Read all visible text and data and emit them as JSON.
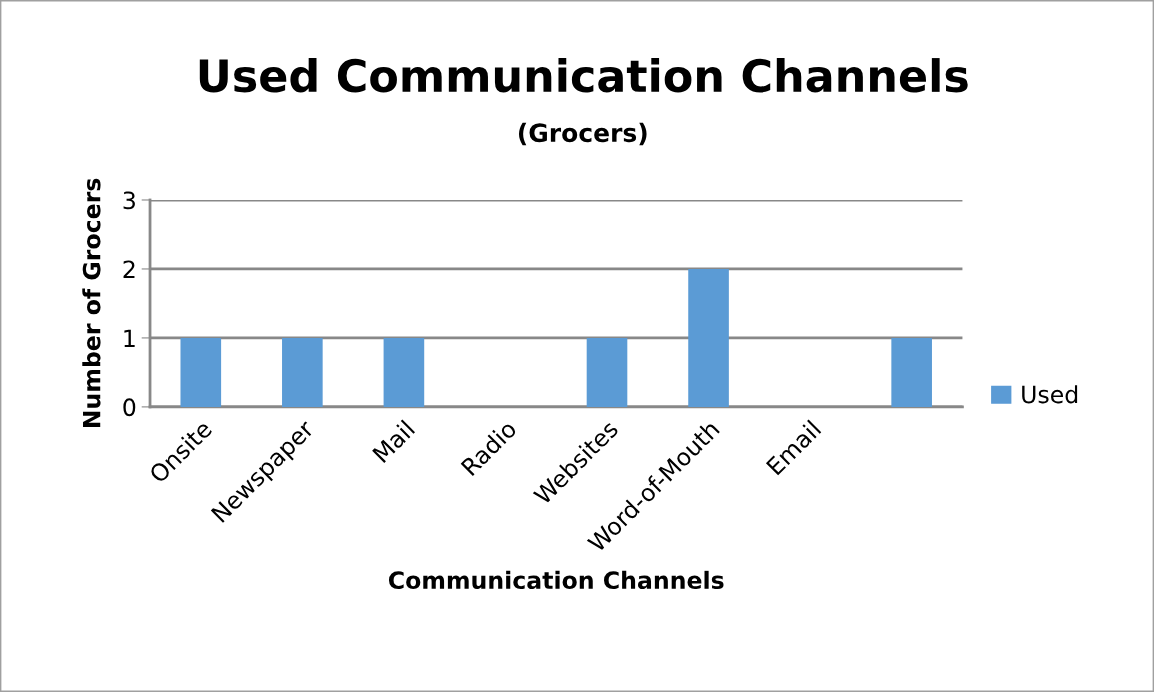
{
  "chart_data": {
    "type": "bar",
    "title": "Used Communication Channels",
    "subtitle": "(Grocers)",
    "xlabel": "Communication Channels",
    "ylabel": "Number of Grocers",
    "categories": [
      "Onsite",
      "Newspaper",
      "Mail",
      "Radio",
      "Websites",
      "Word-of-Mouth",
      "Email",
      null
    ],
    "series": [
      {
        "name": "Used",
        "color": "#5b9bd5",
        "values": [
          1,
          1,
          1,
          0,
          1,
          2,
          0,
          1
        ]
      }
    ],
    "ylim": [
      0,
      3
    ],
    "yticks": [
      0,
      1,
      2,
      3
    ],
    "grid": "y",
    "legend": "right"
  }
}
